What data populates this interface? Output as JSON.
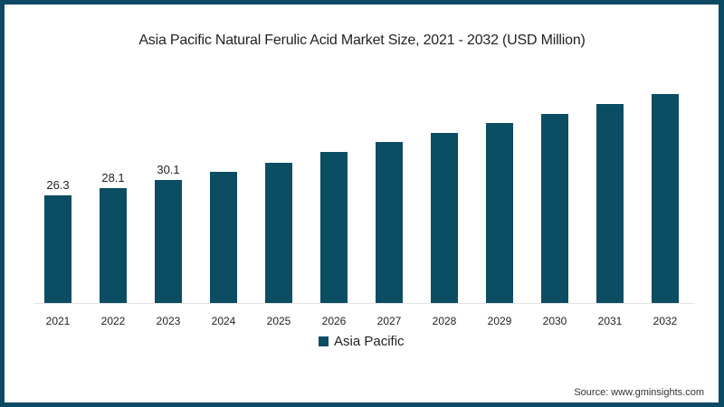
{
  "chart_data": {
    "type": "bar",
    "title": "Asia Pacific Natural Ferulic Acid Market Size, 2021 - 2032 (USD Million)",
    "xlabel": "",
    "ylabel": "",
    "categories": [
      "2021",
      "2022",
      "2023",
      "2024",
      "2025",
      "2026",
      "2027",
      "2028",
      "2029",
      "2030",
      "2031",
      "2032"
    ],
    "series": [
      {
        "name": "Asia Pacific",
        "color": "#0b4d63",
        "values": [
          26.3,
          28.1,
          30.1,
          32.1,
          34.4,
          37.0,
          39.3,
          41.6,
          44.0,
          46.3,
          48.7,
          51.1
        ]
      }
    ],
    "data_labels": {
      "2021": "26.3",
      "2022": "28.1",
      "2023": "30.1"
    },
    "ylim": [
      0,
      55
    ],
    "grid": false,
    "legend_position": "bottom",
    "source": "Source: www.gminsights.com"
  },
  "colors": {
    "bar": "#0b4d63",
    "frame": "#0b4a62"
  }
}
